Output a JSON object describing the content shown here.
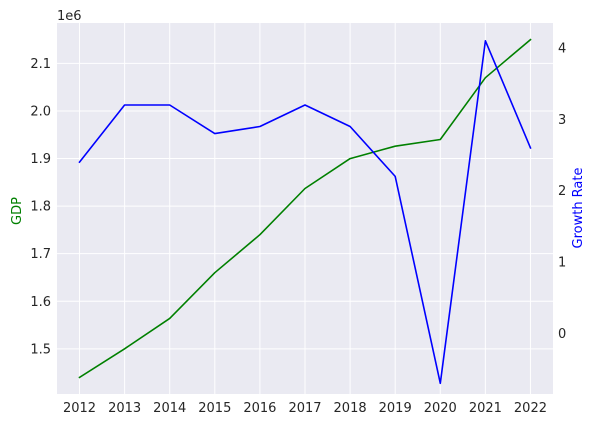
{
  "chart_data": {
    "type": "line",
    "title": "",
    "categories": [
      "2012",
      "2013",
      "2014",
      "2015",
      "2016",
      "2017",
      "2018",
      "2019",
      "2020",
      "2021",
      "2022"
    ],
    "x": [
      2012,
      2013,
      2014,
      2015,
      2016,
      2017,
      2018,
      2019,
      2020,
      2021,
      2022
    ],
    "left_axis": {
      "label": "GDP",
      "color": "#008000",
      "offset_text": "1e6",
      "ylim": [
        1.405,
        2.185
      ],
      "ticks": [
        1.5,
        1.6,
        1.7,
        1.8,
        1.9,
        2.0,
        2.1
      ],
      "tick_labels": [
        "1.5",
        "1.6",
        "1.7",
        "1.8",
        "1.9",
        "2.0",
        "2.1"
      ]
    },
    "right_axis": {
      "label": "Growth Rate",
      "color": "#0000ff",
      "ylim": [
        -0.85,
        4.35
      ],
      "ticks": [
        0,
        1,
        2,
        3,
        4
      ],
      "tick_labels": [
        "0",
        "1",
        "2",
        "3",
        "4"
      ]
    },
    "series": [
      {
        "axis": "left",
        "color": "#008000",
        "values": [
          1.44,
          1.5,
          1.564,
          1.66,
          1.74,
          1.837,
          1.9,
          1.926,
          1.94,
          2.07,
          2.15
        ]
      },
      {
        "axis": "right",
        "color": "#0000ff",
        "values": [
          2.4,
          3.2,
          3.2,
          2.8,
          2.9,
          3.2,
          2.9,
          2.2,
          -0.7,
          4.1,
          2.6
        ]
      }
    ],
    "grid": true,
    "legend": "none"
  }
}
